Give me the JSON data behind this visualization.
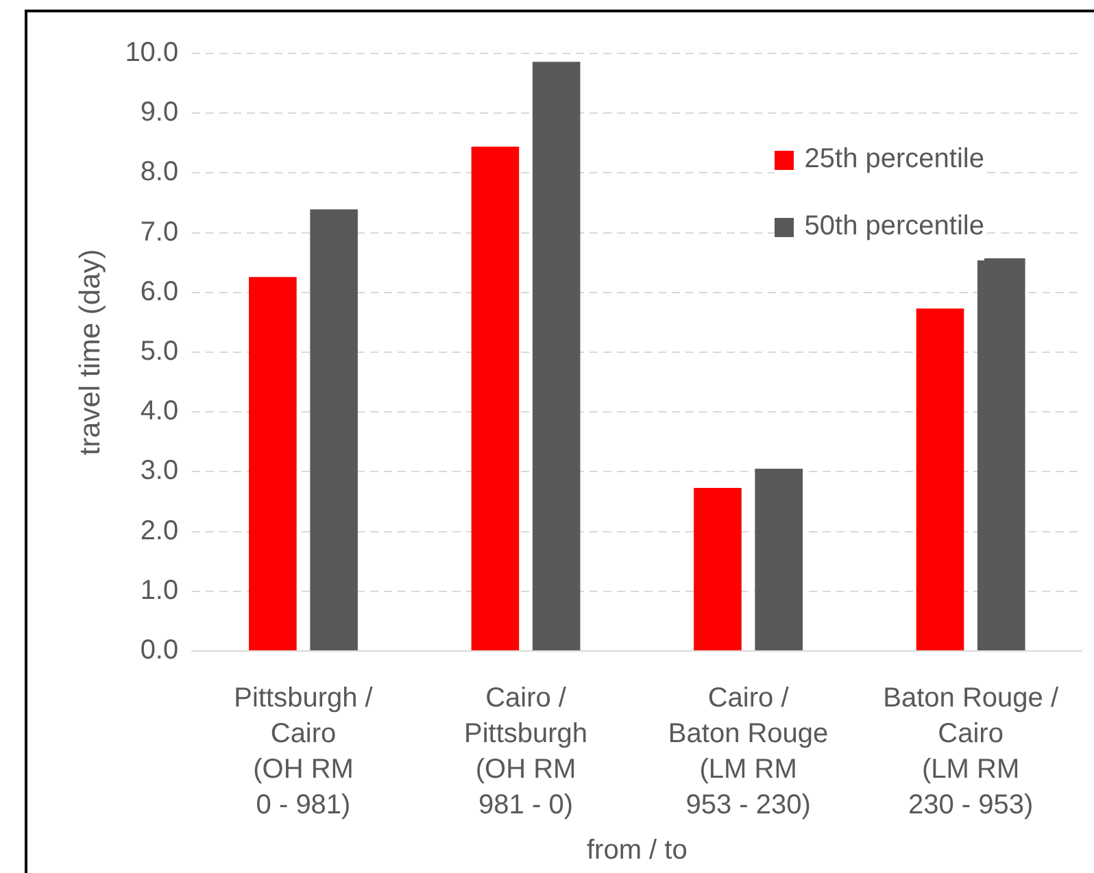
{
  "chart_data": {
    "type": "bar",
    "xlabel": "from / to",
    "ylabel": "travel time (day)",
    "categories": [
      "Pittsburgh / Cairo (OH RM 0 - 981)",
      "Cairo / Pittsburgh (OH RM 981 - 0)",
      "Cairo / Baton Rouge (LM RM 953 - 230)",
      "Baton Rouge / Cairo (LM RM 230 - 953)"
    ],
    "series": [
      {
        "name": "25th percentile",
        "color": "#ff0000",
        "values": [
          6.26,
          8.44,
          2.73,
          5.73
        ]
      },
      {
        "name": "50th percentile",
        "color": "#595959",
        "values": [
          7.39,
          9.86,
          3.05,
          6.57
        ]
      }
    ],
    "ylim": [
      0,
      10
    ],
    "yticks": [
      {
        "value": 0,
        "label": "0.0"
      },
      {
        "value": 1,
        "label": "1.0"
      },
      {
        "value": 2,
        "label": "2.0"
      },
      {
        "value": 3,
        "label": "3.0"
      },
      {
        "value": 4,
        "label": "4.0"
      },
      {
        "value": 5,
        "label": "5.0"
      },
      {
        "value": 6,
        "label": "6.0"
      },
      {
        "value": 7,
        "label": "7.0"
      },
      {
        "value": 8,
        "label": "8.0"
      },
      {
        "value": 9,
        "label": "9.0"
      },
      {
        "value": 10,
        "label": "10.0"
      }
    ],
    "grid": "y",
    "legend": "top right"
  }
}
